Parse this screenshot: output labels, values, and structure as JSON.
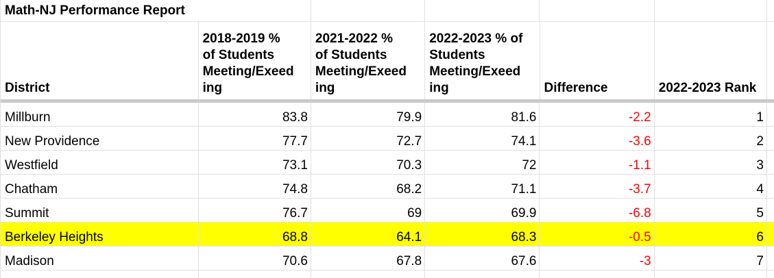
{
  "colors": {
    "highlight": "#ffff00",
    "negative_text": "#ff0000",
    "gridline": "#e0e0e0",
    "header_band": "#c9c9c9",
    "text": "#000000",
    "background": "#ffffff"
  },
  "title": "Math-NJ Performance Report",
  "table": {
    "columns": [
      "District",
      "2018-2019 % of Students Meeting/Exeeding",
      "2021-2022 % of Students Meeting/Exeeding",
      "2022-2023 % of Students Meeting/Exeeding",
      "Difference",
      "2022-2023 Rank"
    ],
    "rows": [
      {
        "district": "Millburn",
        "pct_2018_2019": "83.8",
        "pct_2021_2022": "79.9",
        "pct_2022_2023": "81.6",
        "difference": "-2.2",
        "rank": "1",
        "highlighted": false
      },
      {
        "district": "New Providence",
        "pct_2018_2019": "77.7",
        "pct_2021_2022": "72.7",
        "pct_2022_2023": "74.1",
        "difference": "-3.6",
        "rank": "2",
        "highlighted": false
      },
      {
        "district": "Westfield",
        "pct_2018_2019": "73.1",
        "pct_2021_2022": "70.3",
        "pct_2022_2023": "72",
        "difference": "-1.1",
        "rank": "3",
        "highlighted": false
      },
      {
        "district": "Chatham",
        "pct_2018_2019": "74.8",
        "pct_2021_2022": "68.2",
        "pct_2022_2023": "71.1",
        "difference": "-3.7",
        "rank": "4",
        "highlighted": false
      },
      {
        "district": "Summit",
        "pct_2018_2019": "76.7",
        "pct_2021_2022": "69",
        "pct_2022_2023": "69.9",
        "difference": "-6.8",
        "rank": "5",
        "highlighted": false
      },
      {
        "district": "Berkeley Heights",
        "pct_2018_2019": "68.8",
        "pct_2021_2022": "64.1",
        "pct_2022_2023": "68.3",
        "difference": "-0.5",
        "rank": "6",
        "highlighted": true
      },
      {
        "district": "Madison",
        "pct_2018_2019": "70.6",
        "pct_2021_2022": "67.8",
        "pct_2022_2023": "67.6",
        "difference": "-3",
        "rank": "7",
        "highlighted": false
      }
    ]
  }
}
